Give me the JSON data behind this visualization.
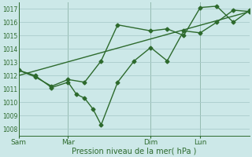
{
  "xlabel": "Pression niveau de la mer( hPa )",
  "bg_color": "#cce8e8",
  "grid_color": "#aacccc",
  "line_color": "#2d6a2d",
  "text_color": "#2d6a2d",
  "ylim": [
    1007.5,
    1017.5
  ],
  "yticks": [
    1008,
    1009,
    1010,
    1011,
    1012,
    1013,
    1014,
    1015,
    1016,
    1017
  ],
  "xtick_labels": [
    "Sam",
    "Mar",
    "Dim",
    "Lun"
  ],
  "vline_x": [
    0,
    6,
    16,
    22
  ],
  "xlim": [
    0,
    28
  ],
  "series1_x": [
    0,
    2,
    4,
    6,
    7,
    8,
    9,
    10,
    12,
    14,
    16,
    18,
    20,
    22,
    24,
    26,
    28
  ],
  "series1_y": [
    1012.4,
    1012.0,
    1011.1,
    1011.5,
    1010.6,
    1010.3,
    1009.5,
    1008.3,
    1011.5,
    1013.1,
    1014.1,
    1013.1,
    1015.35,
    1015.2,
    1016.0,
    1016.9,
    1016.8
  ],
  "series2_x": [
    0,
    2,
    4,
    6,
    8,
    10,
    12,
    16,
    18,
    20,
    22,
    24,
    26,
    28
  ],
  "series2_y": [
    1012.4,
    1011.9,
    1011.2,
    1011.7,
    1011.5,
    1013.1,
    1015.8,
    1015.35,
    1015.5,
    1015.0,
    1017.1,
    1017.2,
    1016.0,
    1016.9
  ],
  "series3_x": [
    0,
    28
  ],
  "series3_y": [
    1012.0,
    1016.8
  ],
  "marker_size": 2.5,
  "line_width": 1.0
}
